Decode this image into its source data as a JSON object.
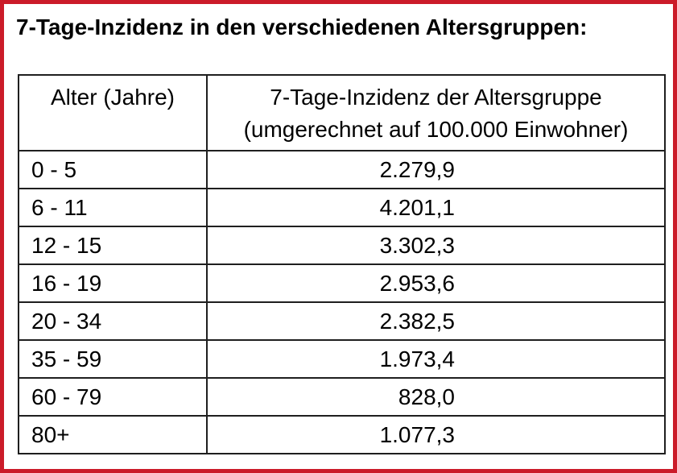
{
  "title": "7-Tage-Inzidenz in den verschiedenen Altersgruppen:",
  "table": {
    "header": {
      "age_label": "Alter (Jahre)",
      "incidence_label_line1": "7-Tage-Inzidenz der Altersgruppe",
      "incidence_label_line2": "(umgerechnet auf 100.000 Einwohner)"
    },
    "rows": [
      {
        "age": "0 - 5",
        "incidence": "2.279,9"
      },
      {
        "age": "6 - 11",
        "incidence": "4.201,1"
      },
      {
        "age": "12 - 15",
        "incidence": "3.302,3"
      },
      {
        "age": "16 - 19",
        "incidence": "2.953,6"
      },
      {
        "age": "20 - 34",
        "incidence": "2.382,5"
      },
      {
        "age": "35 - 59",
        "incidence": "1.973,4"
      },
      {
        "age": "60 - 79",
        "incidence": "828,0"
      },
      {
        "age": "80+",
        "incidence": "1.077,3"
      }
    ]
  },
  "colors": {
    "frame_red": "#cb1b29",
    "table_border": "#1f1f1f",
    "text": "#000000",
    "paper": "#ffffff"
  },
  "chart_data": {
    "type": "table",
    "title": "7-Tage-Inzidenz in den verschiedenen Altersgruppen",
    "columns": [
      "Alter (Jahre)",
      "7-Tage-Inzidenz der Altersgruppe (umgerechnet auf 100.000 Einwohner)"
    ],
    "categories": [
      "0 - 5",
      "6 - 11",
      "12 - 15",
      "16 - 19",
      "20 - 34",
      "35 - 59",
      "60 - 79",
      "80+"
    ],
    "values": [
      2279.9,
      4201.1,
      3302.3,
      2953.6,
      2382.5,
      1973.4,
      828.0,
      1077.3
    ]
  }
}
